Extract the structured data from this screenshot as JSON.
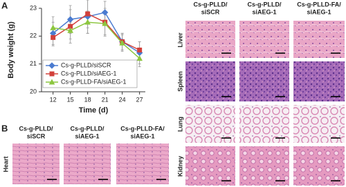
{
  "chart_data": {
    "type": "line",
    "xlabel": "Time (d)",
    "ylabel": "Body weight (g)",
    "x": [
      12,
      15,
      18,
      21,
      24,
      27
    ],
    "xlim": [
      10,
      28
    ],
    "xticks": [
      12,
      15,
      18,
      21,
      24,
      27
    ],
    "ylim": [
      20,
      23
    ],
    "yticks": [
      20,
      21,
      22,
      23
    ],
    "series": [
      {
        "name": "Cs-g-PLLD/siSCR",
        "color": "#4a7bd0",
        "marker": "diamond",
        "values": [
          22.1,
          22.6,
          22.7,
          22.85,
          21.8,
          21.4
        ],
        "errors": [
          0.4,
          0.5,
          0.6,
          0.4,
          0.3,
          0.4
        ]
      },
      {
        "name": "Cs-g-PLLD/siAEG-1",
        "color": "#d2403a",
        "marker": "square",
        "values": [
          21.95,
          22.35,
          22.8,
          22.5,
          21.8,
          21.5
        ],
        "errors": [
          0.3,
          0.6,
          0.5,
          0.5,
          0.3,
          0.3
        ]
      },
      {
        "name": "Cs-g-PLLD-FA/siAEG-1",
        "color": "#8cc63f",
        "marker": "triangle",
        "values": [
          22.3,
          22.2,
          22.5,
          22.45,
          21.75,
          21.2
        ],
        "errors": [
          0.4,
          0.3,
          0.4,
          0.4,
          0.3,
          0.3
        ]
      }
    ],
    "legend": "lower-left"
  },
  "panel_labels": [
    "A",
    "B"
  ],
  "histology_a": {
    "columns": [
      [
        "Cs-g-PLLD/",
        "siSCR"
      ],
      [
        "Cs-g-PLLD/",
        "siAEG-1"
      ],
      [
        "Cs-g-PLLD-FA/",
        "siAEG-1"
      ]
    ],
    "rows": [
      "Liver",
      "Spleen",
      "Lung",
      "Kidney"
    ]
  },
  "histology_b": {
    "columns": [
      [
        "Cs-g-PLLD/",
        "siSCR"
      ],
      [
        "Cs-g-PLLD/",
        "siAEG-1"
      ],
      [
        "Cs-g-PLLD-FA/",
        "siAEG-1"
      ]
    ],
    "rows": [
      "Heart"
    ]
  }
}
